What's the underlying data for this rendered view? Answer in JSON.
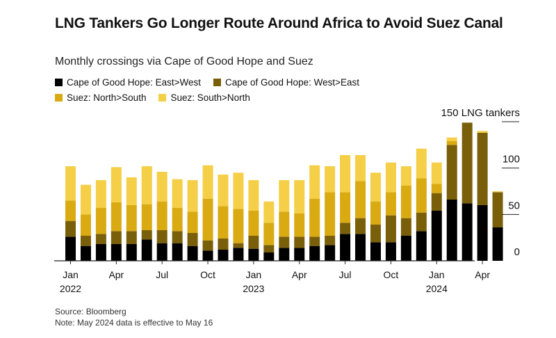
{
  "title": "LNG Tankers Go Longer Route Around Africa to Avoid Suez Canal",
  "subtitle": "Monthly crossings via Cape of Good Hope and Suez",
  "footer": {
    "source": "Source: Bloomberg",
    "note": "Note: May 2024 data is effective to May 16"
  },
  "colors": {
    "cape_east_west": "#000000",
    "cape_west_east": "#7a5f0a",
    "suez_north_south": "#d9aa12",
    "suez_south_north": "#f5cf47"
  },
  "chart_data": {
    "type": "bar",
    "stacked": true,
    "title": "LNG Tankers Go Longer Route Around Africa to Avoid Suez Canal",
    "subtitle": "Monthly crossings via Cape of Good Hope and Suez",
    "unit_label": "150 LNG tankers",
    "ylim": [
      0,
      150
    ],
    "y_ticks": [
      0,
      50,
      100,
      150
    ],
    "y_tick_labels": [
      "0",
      "50",
      "100",
      "150 LNG tankers"
    ],
    "x_tick_labels": [
      {
        "month": "Jan",
        "year": "2022",
        "index": 0
      },
      {
        "month": "Apr",
        "year": "",
        "index": 3
      },
      {
        "month": "Jul",
        "year": "",
        "index": 6
      },
      {
        "month": "Oct",
        "year": "",
        "index": 9
      },
      {
        "month": "Jan",
        "year": "2023",
        "index": 12
      },
      {
        "month": "Apr",
        "year": "",
        "index": 15
      },
      {
        "month": "Jul",
        "year": "",
        "index": 18
      },
      {
        "month": "Oct",
        "year": "",
        "index": 21
      },
      {
        "month": "Jan",
        "year": "2024",
        "index": 24
      },
      {
        "month": "Apr",
        "year": "",
        "index": 27
      }
    ],
    "categories": [
      "Jan 2022",
      "Feb 2022",
      "Mar 2022",
      "Apr 2022",
      "May 2022",
      "Jun 2022",
      "Jul 2022",
      "Aug 2022",
      "Sep 2022",
      "Oct 2022",
      "Nov 2022",
      "Dec 2022",
      "Jan 2023",
      "Feb 2023",
      "Mar 2023",
      "Apr 2023",
      "May 2023",
      "Jun 2023",
      "Jul 2023",
      "Aug 2023",
      "Sep 2023",
      "Oct 2023",
      "Nov 2023",
      "Dec 2023",
      "Jan 2024",
      "Feb 2024",
      "Mar 2024",
      "Apr 2024",
      "May 2024"
    ],
    "legend_rows": [
      [
        "Cape of Good Hope: East>West",
        "Cape of Good Hope: West>East"
      ],
      [
        "Suez: North>South",
        "Suez: South>North"
      ]
    ],
    "series": [
      {
        "name": "Cape of Good Hope: East>West",
        "color": "#000000",
        "values": [
          26,
          16,
          18,
          18,
          18,
          23,
          19,
          19,
          16,
          11,
          12,
          14,
          13,
          9,
          14,
          14,
          16,
          17,
          29,
          29,
          20,
          20,
          27,
          32,
          54,
          66,
          62,
          60,
          36
        ]
      },
      {
        "name": "Cape of Good Hope: West>East",
        "color": "#7a5f0a",
        "values": [
          17,
          11,
          11,
          14,
          14,
          10,
          14,
          13,
          14,
          11,
          12,
          5,
          14,
          8,
          12,
          12,
          10,
          10,
          12,
          17,
          19,
          29,
          19,
          20,
          19,
          59,
          87,
          78,
          38
        ]
      },
      {
        "name": "Suez: North>South",
        "color": "#d9aa12",
        "values": [
          22,
          23,
          28,
          31,
          28,
          28,
          31,
          25,
          23,
          45,
          35,
          37,
          27,
          24,
          27,
          25,
          41,
          47,
          33,
          40,
          25,
          25,
          35,
          37,
          10,
          4,
          0,
          0,
          0
        ]
      },
      {
        "name": "Suez: South>North",
        "color": "#f5cf47",
        "values": [
          37,
          32,
          30,
          38,
          30,
          41,
          32,
          31,
          34,
          36,
          34,
          39,
          33,
          23,
          34,
          36,
          36,
          28,
          40,
          28,
          31,
          32,
          21,
          32,
          23,
          4,
          0,
          2,
          1
        ]
      }
    ]
  }
}
